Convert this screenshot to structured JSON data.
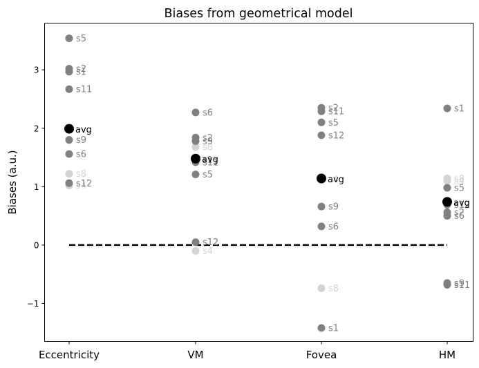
{
  "chart_data": {
    "type": "scatter",
    "title": "Biases from geometrical model",
    "xlabel": "",
    "ylabel": "Biases (a.u.)",
    "categories": [
      "Eccentricity",
      "VM",
      "Fovea",
      "HM"
    ],
    "ylim": [
      -1.65,
      3.8
    ],
    "yticks": [
      -1,
      0,
      1,
      2,
      3
    ],
    "ytick_labels": [
      "−1",
      "0",
      "1",
      "2",
      "3"
    ],
    "grid": false,
    "reference_line": {
      "y": 0,
      "style": "dashed",
      "color": "#000000"
    },
    "colors": {
      "subject_dark": "#808080",
      "subject_light": "#d3d3d3",
      "average": "#000000"
    },
    "series": [
      {
        "category": "Eccentricity",
        "points": [
          {
            "label": "s5",
            "y": 3.54,
            "shade": "dark"
          },
          {
            "label": "s2",
            "y": 3.02,
            "shade": "dark"
          },
          {
            "label": "s1",
            "y": 2.97,
            "shade": "dark"
          },
          {
            "label": "s11",
            "y": 2.67,
            "shade": "dark"
          },
          {
            "label": "s9",
            "y": 1.8,
            "shade": "dark"
          },
          {
            "label": "s6",
            "y": 1.56,
            "shade": "dark"
          },
          {
            "label": "s8",
            "y": 1.22,
            "shade": "light"
          },
          {
            "label": "s4",
            "y": 1.02,
            "shade": "light"
          },
          {
            "label": "s12",
            "y": 1.06,
            "shade": "dark"
          },
          {
            "label": "avg",
            "y": 1.99,
            "shade": "avg"
          }
        ]
      },
      {
        "category": "VM",
        "points": [
          {
            "label": "s6",
            "y": 2.27,
            "shade": "dark"
          },
          {
            "label": "s2",
            "y": 1.84,
            "shade": "dark"
          },
          {
            "label": "s9",
            "y": 1.78,
            "shade": "dark"
          },
          {
            "label": "s8",
            "y": 1.68,
            "shade": "light"
          },
          {
            "label": "s1",
            "y": 1.46,
            "shade": "dark"
          },
          {
            "label": "s11",
            "y": 1.42,
            "shade": "dark"
          },
          {
            "label": "s5",
            "y": 1.21,
            "shade": "dark"
          },
          {
            "label": "s12",
            "y": 0.05,
            "shade": "dark"
          },
          {
            "label": "s4",
            "y": -0.1,
            "shade": "light"
          },
          {
            "label": "avg",
            "y": 1.48,
            "shade": "avg"
          }
        ]
      },
      {
        "category": "Fovea",
        "points": [
          {
            "label": "s2",
            "y": 2.35,
            "shade": "dark"
          },
          {
            "label": "s11",
            "y": 2.29,
            "shade": "dark"
          },
          {
            "label": "s5",
            "y": 2.1,
            "shade": "dark"
          },
          {
            "label": "s12",
            "y": 1.88,
            "shade": "dark"
          },
          {
            "label": "s4",
            "y": 1.12,
            "shade": "light"
          },
          {
            "label": "s9",
            "y": 0.66,
            "shade": "dark"
          },
          {
            "label": "s6",
            "y": 0.32,
            "shade": "dark"
          },
          {
            "label": "s8",
            "y": -0.74,
            "shade": "light"
          },
          {
            "label": "s1",
            "y": -1.42,
            "shade": "dark"
          },
          {
            "label": "avg",
            "y": 1.14,
            "shade": "avg"
          }
        ]
      },
      {
        "category": "HM",
        "points": [
          {
            "label": "s1",
            "y": 2.34,
            "shade": "dark"
          },
          {
            "label": "s8",
            "y": 1.14,
            "shade": "light"
          },
          {
            "label": "s4",
            "y": 1.1,
            "shade": "light"
          },
          {
            "label": "s5",
            "y": 0.98,
            "shade": "dark"
          },
          {
            "label": "s12",
            "y": 0.69,
            "shade": "dark"
          },
          {
            "label": "s2",
            "y": 0.56,
            "shade": "dark"
          },
          {
            "label": "s6",
            "y": 0.5,
            "shade": "dark"
          },
          {
            "label": "s9",
            "y": -0.65,
            "shade": "dark"
          },
          {
            "label": "s11",
            "y": -0.68,
            "shade": "dark"
          },
          {
            "label": "avg",
            "y": 0.74,
            "shade": "avg"
          }
        ]
      }
    ]
  }
}
